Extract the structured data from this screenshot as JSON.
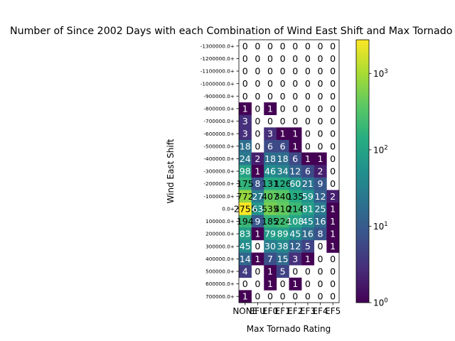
{
  "chart_data": {
    "type": "heatmap",
    "title": "Number of Since 2002 Days with each Combination of Wind East Shift and Max Tornado Rating",
    "xlabel": "Max Tornado Rating",
    "ylabel": "Wind East Shift",
    "x_categories": [
      "NONE",
      "EFU",
      "EF0",
      "EF1",
      "EF2",
      "EF3",
      "EF4",
      "EF5"
    ],
    "y_categories": [
      "-1300000.0+",
      "-1200000.0+",
      "-1100000.0+",
      "-1000000.0+",
      "-900000.0+",
      "-800000.0+",
      "-700000.0+",
      "-600000.0+",
      "-500000.0+",
      "-400000.0+",
      "-300000.0+",
      "-200000.0+",
      "-100000.0+",
      "0.0+",
      "100000.0+",
      "200000.0+",
      "300000.0+",
      "400000.0+",
      "500000.0+",
      "600000.0+",
      "700000.0+"
    ],
    "values": [
      [
        0,
        0,
        0,
        0,
        0,
        0,
        0,
        0
      ],
      [
        0,
        0,
        0,
        0,
        0,
        0,
        0,
        0
      ],
      [
        0,
        0,
        0,
        0,
        0,
        0,
        0,
        0
      ],
      [
        0,
        0,
        0,
        0,
        0,
        0,
        0,
        0
      ],
      [
        0,
        0,
        0,
        0,
        0,
        0,
        0,
        0
      ],
      [
        1,
        0,
        1,
        0,
        0,
        0,
        0,
        0
      ],
      [
        3,
        0,
        0,
        0,
        0,
        0,
        0,
        0
      ],
      [
        3,
        0,
        3,
        1,
        1,
        0,
        0,
        0
      ],
      [
        18,
        0,
        6,
        6,
        1,
        0,
        0,
        0
      ],
      [
        24,
        2,
        18,
        18,
        6,
        1,
        1,
        0
      ],
      [
        98,
        1,
        46,
        34,
        12,
        6,
        2,
        0
      ],
      [
        175,
        8,
        131,
        126,
        60,
        21,
        9,
        0
      ],
      [
        772,
        27,
        407,
        340,
        135,
        59,
        12,
        2
      ],
      [
        2755,
        63,
        535,
        410,
        214,
        81,
        25,
        1
      ],
      [
        194,
        9,
        185,
        224,
        108,
        45,
        16,
        1
      ],
      [
        83,
        1,
        79,
        89,
        45,
        16,
        8,
        1
      ],
      [
        45,
        0,
        30,
        38,
        12,
        5,
        0,
        1
      ],
      [
        14,
        1,
        7,
        15,
        3,
        1,
        0,
        0
      ],
      [
        4,
        0,
        1,
        5,
        0,
        0,
        0,
        0
      ],
      [
        0,
        0,
        1,
        0,
        1,
        0,
        0,
        0
      ],
      [
        1,
        0,
        0,
        0,
        0,
        0,
        0,
        0
      ]
    ],
    "colorbar": {
      "scale": "log",
      "range": [
        1,
        2755
      ],
      "ticks": [
        {
          "value": 1,
          "base": "10",
          "exp": "0"
        },
        {
          "value": 10,
          "base": "10",
          "exp": "1"
        },
        {
          "value": 100,
          "base": "10",
          "exp": "2"
        },
        {
          "value": 1000,
          "base": "10",
          "exp": "3"
        }
      ],
      "colormap": "viridis",
      "zero_color": "#ffffff"
    }
  }
}
